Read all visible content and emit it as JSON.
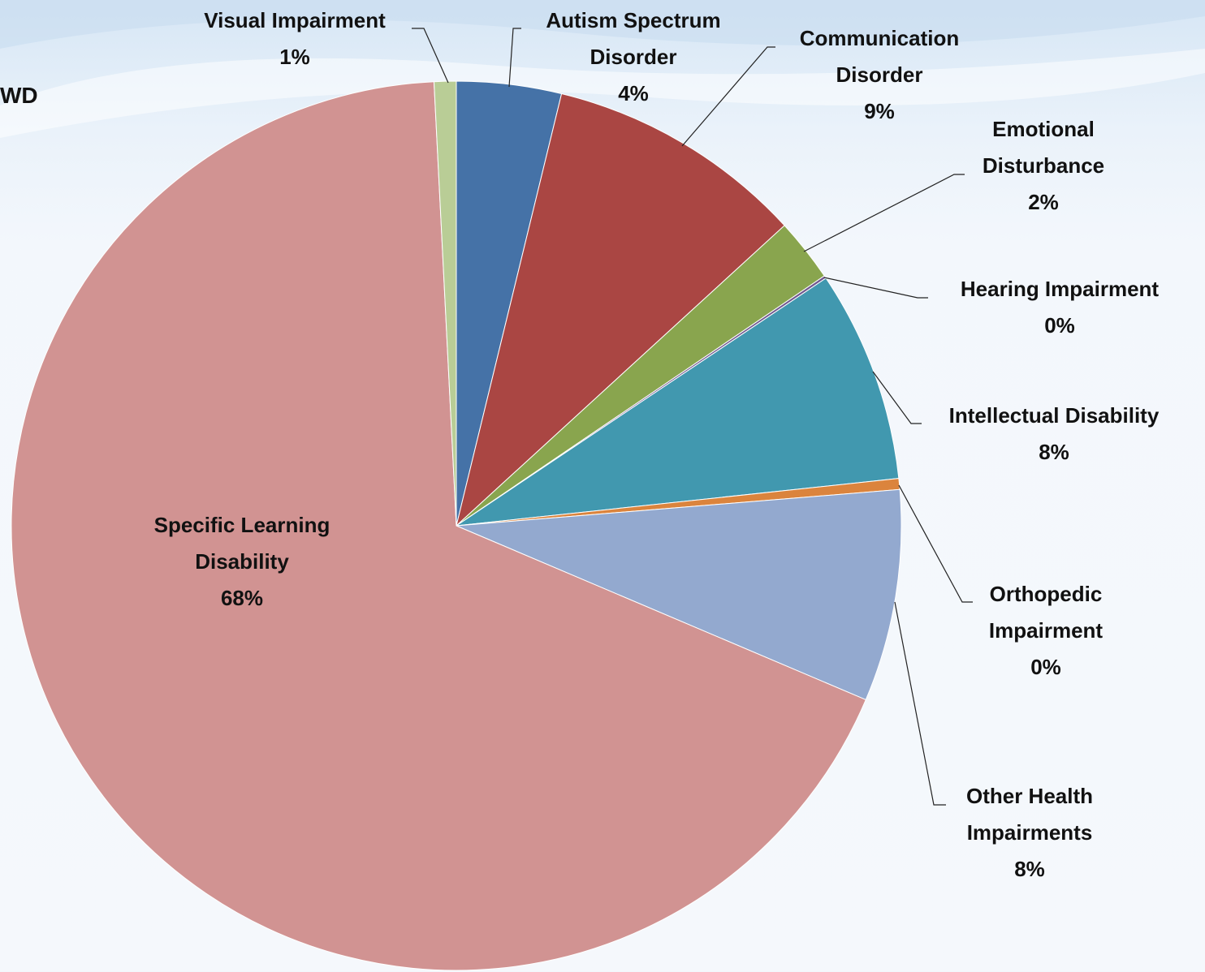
{
  "chart_data": {
    "type": "pie",
    "title": "WD",
    "categories": [
      "Autism Spectrum Disorder",
      "Communication Disorder",
      "Emotional Disturbance",
      "Hearing Impairment",
      "Intellectual Disability",
      "Orthopedic Impairment",
      "Other Health Impairments",
      "Specific Learning Disability",
      "Visual Impairment"
    ],
    "values": [
      3.8,
      9.4,
      2.3,
      0.1,
      7.7,
      0.4,
      7.7,
      67.8,
      0.8
    ],
    "value_labels": [
      "4%",
      "9%",
      "2%",
      "0%",
      "8%",
      "0%",
      "8%",
      "68%",
      "1%"
    ],
    "colors": [
      "#4572a7",
      "#aa4643",
      "#89a54e",
      "#71588f",
      "#4198af",
      "#db843d",
      "#93a9cf",
      "#d19392",
      "#b9cd96"
    ]
  }
}
